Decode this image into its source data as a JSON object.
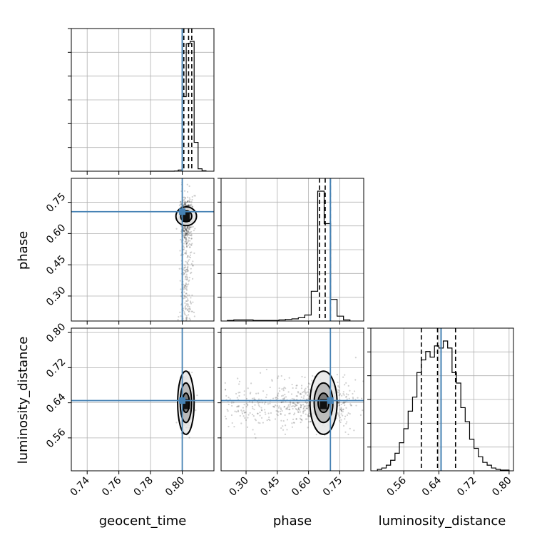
{
  "chart_data": {
    "type": "corner",
    "parameters": [
      "geocent_time",
      "phase",
      "luminosity_distance"
    ],
    "axis_labels": {
      "bottom": [
        "geocent_time",
        "phase",
        "luminosity_distance"
      ],
      "left": [
        "",
        "phase",
        "luminosity_distance"
      ]
    },
    "ranges": {
      "geocent_time": [
        0.73,
        0.82
      ],
      "phase": [
        0.18,
        0.865
      ],
      "luminosity_distance": [
        0.485,
        0.81
      ]
    },
    "ticks": {
      "geocent_time": [
        "0.74",
        "0.76",
        "0.78",
        "0.80"
      ],
      "phase": [
        "0.30",
        "0.45",
        "0.60",
        "0.75"
      ],
      "luminosity_distance": [
        "0.56",
        "0.64",
        "0.72",
        "0.80"
      ]
    },
    "truths": {
      "geocent_time": 0.8,
      "phase": 0.705,
      "luminosity_distance": 0.645
    },
    "truth_color": "#4682b4",
    "quantiles": {
      "geocent_time": [
        0.801,
        0.804,
        0.806
      ],
      "phase": [
        0.653,
        0.68,
        0.705
      ],
      "luminosity_distance": [
        0.6,
        0.637,
        0.678
      ]
    },
    "histograms": {
      "geocent_time": {
        "bin_edges": [
          0.78,
          0.7825,
          0.785,
          0.7875,
          0.79,
          0.7925,
          0.795,
          0.7975,
          0.8,
          0.8025,
          0.805,
          0.8075,
          0.81,
          0.8125,
          0.815
        ],
        "counts": [
          0,
          0,
          0,
          0,
          0,
          0,
          1,
          5,
          310,
          530,
          540,
          120,
          10,
          2
        ]
      },
      "phase": {
        "bin_edges": [
          0.21,
          0.241,
          0.272,
          0.303,
          0.334,
          0.365,
          0.396,
          0.427,
          0.458,
          0.489,
          0.52,
          0.551,
          0.582,
          0.613,
          0.644,
          0.675,
          0.706,
          0.737,
          0.768,
          0.799
        ],
        "counts": [
          1,
          2,
          2,
          2,
          1,
          1,
          1,
          1,
          2,
          3,
          4,
          6,
          11,
          55,
          240,
          180,
          40,
          9,
          2
        ]
      },
      "luminosity_distance": {
        "bin_edges": [
          0.5,
          0.51,
          0.52,
          0.53,
          0.54,
          0.55,
          0.56,
          0.57,
          0.58,
          0.59,
          0.6,
          0.61,
          0.62,
          0.63,
          0.64,
          0.65,
          0.66,
          0.67,
          0.68,
          0.69,
          0.7,
          0.71,
          0.72,
          0.73,
          0.74,
          0.75,
          0.76,
          0.77,
          0.78,
          0.79,
          0.8
        ],
        "counts": [
          2,
          4,
          8,
          15,
          25,
          40,
          60,
          85,
          105,
          140,
          158,
          170,
          162,
          178,
          175,
          185,
          175,
          140,
          125,
          90,
          70,
          45,
          32,
          20,
          12,
          8,
          4,
          2,
          1,
          1
        ]
      }
    },
    "pairs": [
      {
        "x": "geocent_time",
        "y": "phase",
        "core": {
          "x": 0.8025,
          "y": 0.68
        },
        "contours": [
          {
            "x": 0.8025,
            "y": 0.683,
            "rx": 0.0035,
            "ry": 0.026
          },
          {
            "x": 0.8025,
            "y": 0.683,
            "rx": 0.0065,
            "ry": 0.045
          }
        ],
        "scatter_spread": {
          "x": 0.0045,
          "y": 0.11
        }
      },
      {
        "x": "geocent_time",
        "y": "luminosity_distance",
        "core": {
          "x": 0.8025,
          "y": 0.637
        },
        "contours": [
          {
            "x": 0.8023,
            "y": 0.64,
            "rx": 0.0022,
            "ry": 0.022
          },
          {
            "x": 0.8023,
            "y": 0.64,
            "rx": 0.0036,
            "ry": 0.045
          },
          {
            "x": 0.8023,
            "y": 0.64,
            "rx": 0.0052,
            "ry": 0.072
          }
        ],
        "scatter_spread": {
          "x": 0.004,
          "y": 0.055
        }
      },
      {
        "x": "phase",
        "y": "luminosity_distance",
        "core": {
          "x": 0.672,
          "y": 0.637
        },
        "contours": [
          {
            "x": 0.672,
            "y": 0.64,
            "rx": 0.026,
            "ry": 0.022
          },
          {
            "x": 0.672,
            "y": 0.64,
            "rx": 0.045,
            "ry": 0.045
          },
          {
            "x": 0.672,
            "y": 0.64,
            "rx": 0.065,
            "ry": 0.072
          }
        ],
        "scatter_spread": {
          "x": 0.18,
          "y": 0.055
        }
      }
    ]
  }
}
